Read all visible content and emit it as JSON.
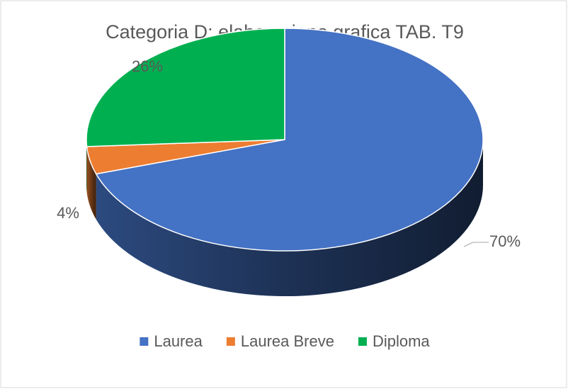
{
  "chart_data": {
    "type": "pie3d",
    "title": "Categoria D: elaborazione grafica TAB. T9",
    "categories": [
      "Laurea",
      "Laurea Breve",
      "Diploma"
    ],
    "values": [
      70,
      4,
      26
    ],
    "value_labels": [
      "70%",
      "4%",
      "26%"
    ],
    "colors": [
      "#4472c4",
      "#ed7d31",
      "#00b050"
    ],
    "legend": "bottom"
  }
}
